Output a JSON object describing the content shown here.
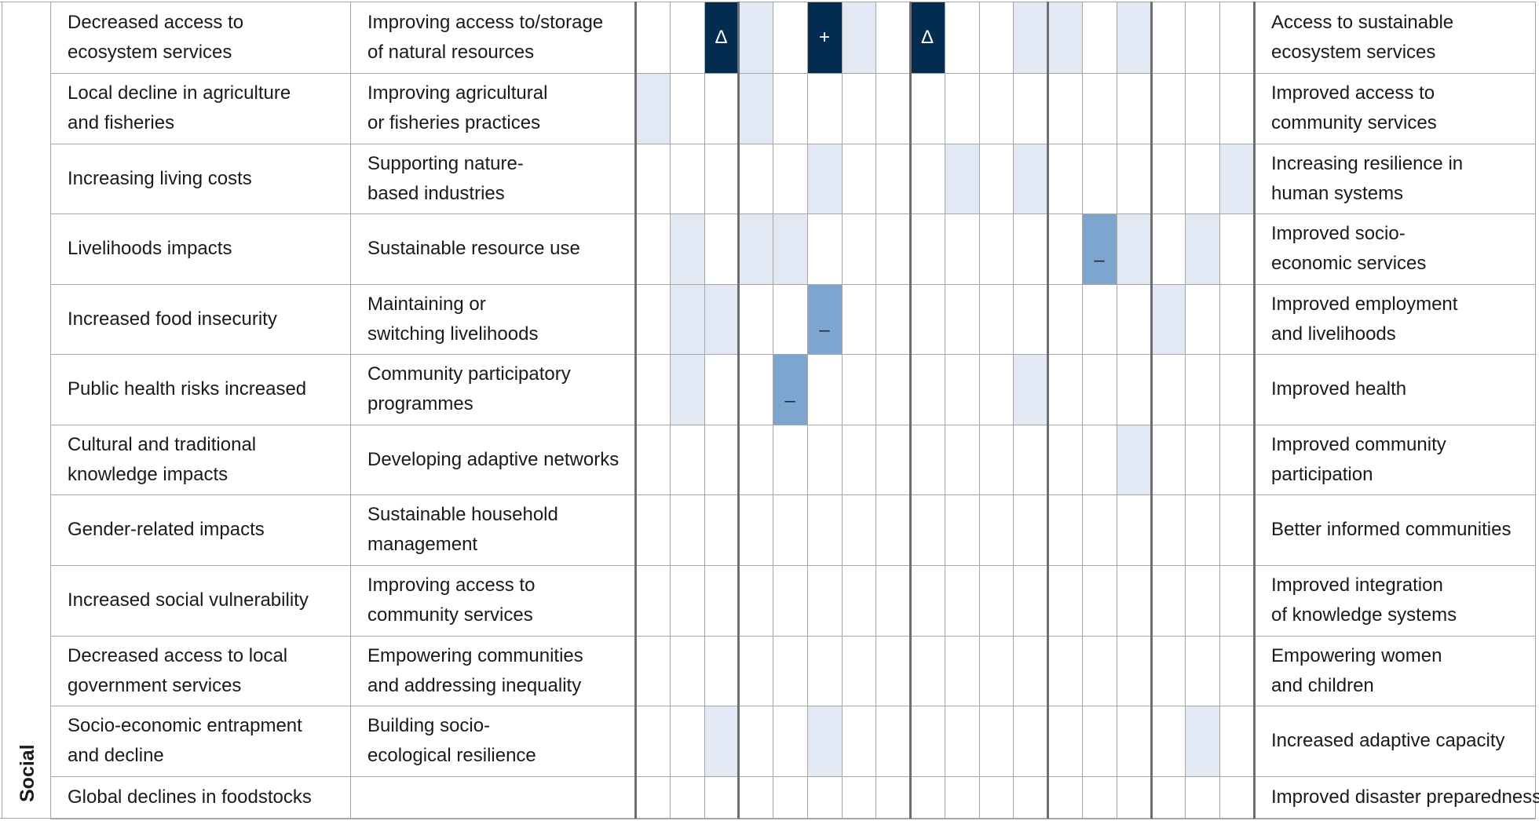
{
  "domain_label": "Social",
  "rows": [
    {
      "risk": [
        "Decreased access to",
        "ecosystem services"
      ],
      "response": [
        "Improving access to/storage",
        "of natural resources"
      ],
      "outcome": [
        "Access to sustainable",
        "ecosystem services"
      ]
    },
    {
      "risk": [
        "Local decline in agriculture",
        "and fisheries"
      ],
      "response": [
        "Improving agricultural",
        "or fisheries practices"
      ],
      "outcome": [
        "Improved access to",
        "community services"
      ]
    },
    {
      "risk": [
        "Increasing living costs"
      ],
      "response": [
        "Supporting nature-",
        "based industries"
      ],
      "outcome": [
        "Increasing resilience in",
        "human systems"
      ]
    },
    {
      "risk": [
        "Livelihoods impacts"
      ],
      "response": [
        "Sustainable resource use"
      ],
      "outcome": [
        "Improved socio-",
        "economic services"
      ]
    },
    {
      "risk": [
        "Increased food insecurity"
      ],
      "response": [
        "Maintaining or",
        "switching livelihoods"
      ],
      "outcome": [
        "Improved employment",
        "and livelihoods"
      ]
    },
    {
      "risk": [
        "Public health risks increased"
      ],
      "response": [
        "Community participatory",
        "programmes"
      ],
      "outcome": [
        "Improved health"
      ]
    },
    {
      "risk": [
        "Cultural and traditional",
        "knowledge impacts"
      ],
      "response": [
        "Developing adaptive networks"
      ],
      "outcome": [
        "Improved community",
        "participation"
      ]
    },
    {
      "risk": [
        "Gender-related impacts"
      ],
      "response": [
        "Sustainable household",
        "management"
      ],
      "outcome": [
        "Better informed communities"
      ]
    },
    {
      "risk": [
        "Increased social vulnerability"
      ],
      "response": [
        "Improving access to",
        "community services"
      ],
      "outcome": [
        "Improved integration",
        "of knowledge systems"
      ]
    },
    {
      "risk": [
        "Decreased access to local",
        "government services"
      ],
      "response": [
        "Empowering communities",
        "and addressing inequality"
      ],
      "outcome": [
        "Empowering women",
        "and children"
      ]
    },
    {
      "risk": [
        "Socio-economic entrapment",
        "and decline"
      ],
      "response": [
        "Building socio-",
        "ecological resilience"
      ],
      "outcome": [
        "Increased adaptive capacity"
      ]
    },
    {
      "risk": [
        "Global declines in foodstocks"
      ],
      "response": [],
      "outcome": [
        "Improved disaster preparedness"
      ]
    }
  ],
  "grid_cells": [
    {
      "row": 0,
      "col": 2,
      "shade": "dark",
      "symbol": "Δ"
    },
    {
      "row": 0,
      "col": 3,
      "shade": "light",
      "symbol": ""
    },
    {
      "row": 0,
      "col": 5,
      "shade": "dark",
      "symbol": "+"
    },
    {
      "row": 0,
      "col": 6,
      "shade": "light",
      "symbol": ""
    },
    {
      "row": 0,
      "col": 8,
      "shade": "dark",
      "symbol": "Δ"
    },
    {
      "row": 0,
      "col": 11,
      "shade": "light",
      "symbol": ""
    },
    {
      "row": 0,
      "col": 12,
      "shade": "light",
      "symbol": ""
    },
    {
      "row": 0,
      "col": 14,
      "shade": "light",
      "symbol": ""
    },
    {
      "row": 1,
      "col": 0,
      "shade": "light",
      "symbol": ""
    },
    {
      "row": 1,
      "col": 3,
      "shade": "light",
      "symbol": ""
    },
    {
      "row": 2,
      "col": 5,
      "shade": "light",
      "symbol": ""
    },
    {
      "row": 2,
      "col": 9,
      "shade": "light",
      "symbol": ""
    },
    {
      "row": 2,
      "col": 11,
      "shade": "light",
      "symbol": ""
    },
    {
      "row": 2,
      "col": 17,
      "shade": "light",
      "symbol": ""
    },
    {
      "row": 3,
      "col": 1,
      "shade": "light",
      "symbol": ""
    },
    {
      "row": 3,
      "col": 3,
      "shade": "light",
      "symbol": ""
    },
    {
      "row": 3,
      "col": 4,
      "shade": "light",
      "symbol": ""
    },
    {
      "row": 3,
      "col": 13,
      "shade": "mid",
      "symbol": "–"
    },
    {
      "row": 3,
      "col": 14,
      "shade": "light",
      "symbol": ""
    },
    {
      "row": 3,
      "col": 16,
      "shade": "light",
      "symbol": ""
    },
    {
      "row": 4,
      "col": 1,
      "shade": "light",
      "symbol": ""
    },
    {
      "row": 4,
      "col": 2,
      "shade": "light",
      "symbol": ""
    },
    {
      "row": 4,
      "col": 5,
      "shade": "mid",
      "symbol": "–"
    },
    {
      "row": 4,
      "col": 15,
      "shade": "light",
      "symbol": ""
    },
    {
      "row": 5,
      "col": 1,
      "shade": "light",
      "symbol": ""
    },
    {
      "row": 5,
      "col": 4,
      "shade": "mid",
      "symbol": "–"
    },
    {
      "row": 5,
      "col": 11,
      "shade": "light",
      "symbol": ""
    },
    {
      "row": 6,
      "col": 14,
      "shade": "light",
      "symbol": ""
    },
    {
      "row": 10,
      "col": 2,
      "shade": "light",
      "symbol": ""
    },
    {
      "row": 10,
      "col": 5,
      "shade": "light",
      "symbol": ""
    },
    {
      "row": 10,
      "col": 16,
      "shade": "light",
      "symbol": ""
    }
  ]
}
